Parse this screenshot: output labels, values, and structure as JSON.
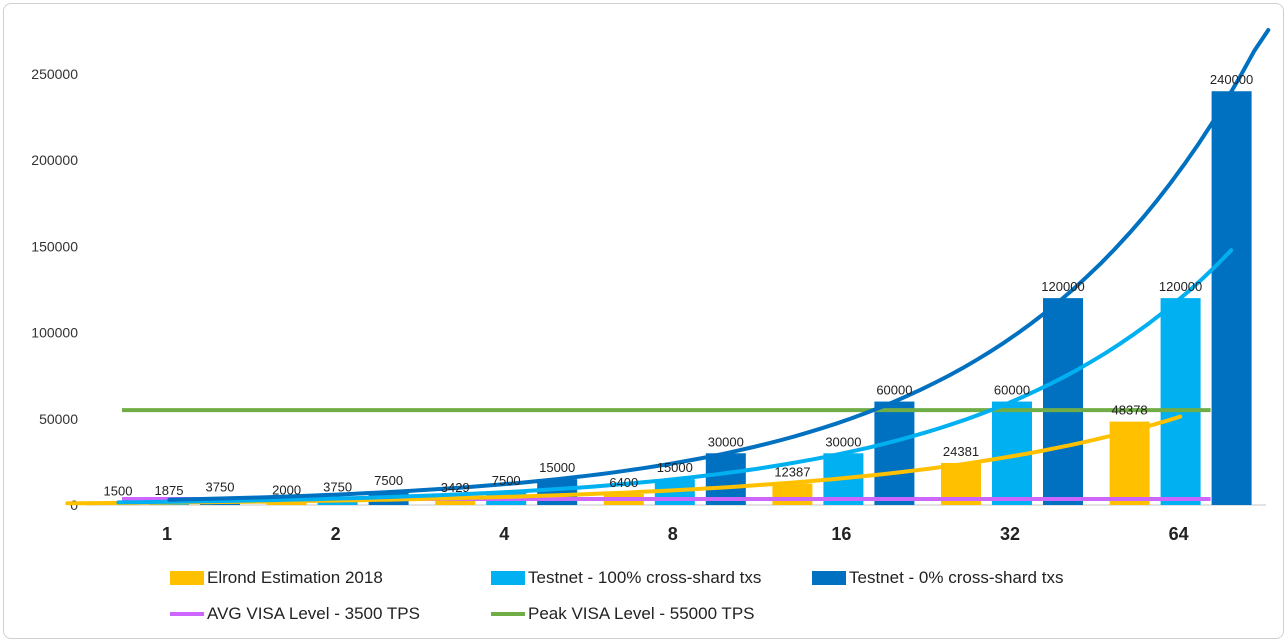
{
  "chart_data": {
    "type": "bar",
    "categories": [
      "1",
      "2",
      "4",
      "8",
      "16",
      "32",
      "64"
    ],
    "series": [
      {
        "name": "Elrond Estimation 2018",
        "kind": "bar",
        "color": "#FFC000",
        "values": [
          1500,
          2000,
          3429,
          6400,
          12387,
          24381,
          48378
        ]
      },
      {
        "name": "Testnet - 100% cross-shard txs",
        "kind": "bar",
        "color": "#00B0F0",
        "values": [
          1875,
          3750,
          7500,
          15000,
          30000,
          60000,
          120000
        ]
      },
      {
        "name": "Testnet - 0% cross-shard txs",
        "kind": "bar",
        "color": "#0070C0",
        "values": [
          3750,
          7500,
          15000,
          30000,
          60000,
          120000,
          240000
        ]
      },
      {
        "name": "AVG VISA Level - 3500 TPS",
        "kind": "line",
        "color": "#CC66FF",
        "values": [
          3500,
          3500,
          3500,
          3500,
          3500,
          3500,
          3500
        ]
      },
      {
        "name": "Peak VISA Level - 55000 TPS",
        "kind": "line",
        "color": "#70AD47",
        "values": [
          55000,
          55000,
          55000,
          55000,
          55000,
          55000,
          55000
        ]
      }
    ],
    "trendlines": [
      {
        "series": "Elrond Estimation 2018",
        "type": "exponential",
        "color": "#FFC000"
      },
      {
        "series": "Testnet - 100% cross-shard txs",
        "type": "exponential",
        "color": "#00B0F0"
      },
      {
        "series": "Testnet - 0% cross-shard txs",
        "type": "exponential",
        "color": "#0070C0"
      }
    ],
    "yticks": [
      0,
      50000,
      100000,
      150000,
      200000,
      250000
    ],
    "ylim": [
      0,
      275000
    ],
    "grid": false,
    "legend_position": "bottom"
  }
}
